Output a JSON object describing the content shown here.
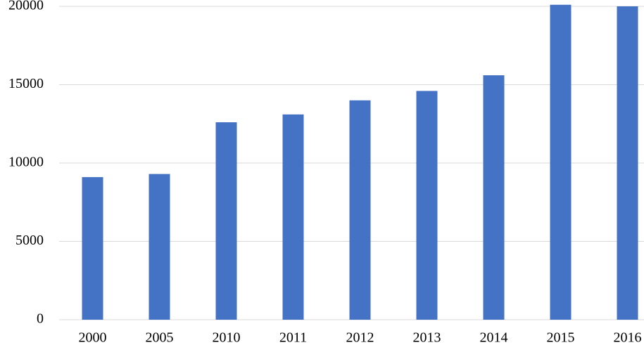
{
  "chart_data": {
    "type": "bar",
    "categories": [
      "2000",
      "2005",
      "2010",
      "2011",
      "2012",
      "2013",
      "2014",
      "2015",
      "2016"
    ],
    "values": [
      9100,
      9300,
      12600,
      13100,
      14000,
      14600,
      15600,
      20100,
      20000
    ],
    "color": "#4472c4",
    "ylim": [
      0,
      20000
    ],
    "yticks": [
      0,
      5000,
      10000,
      15000,
      20000
    ],
    "grid": true
  }
}
